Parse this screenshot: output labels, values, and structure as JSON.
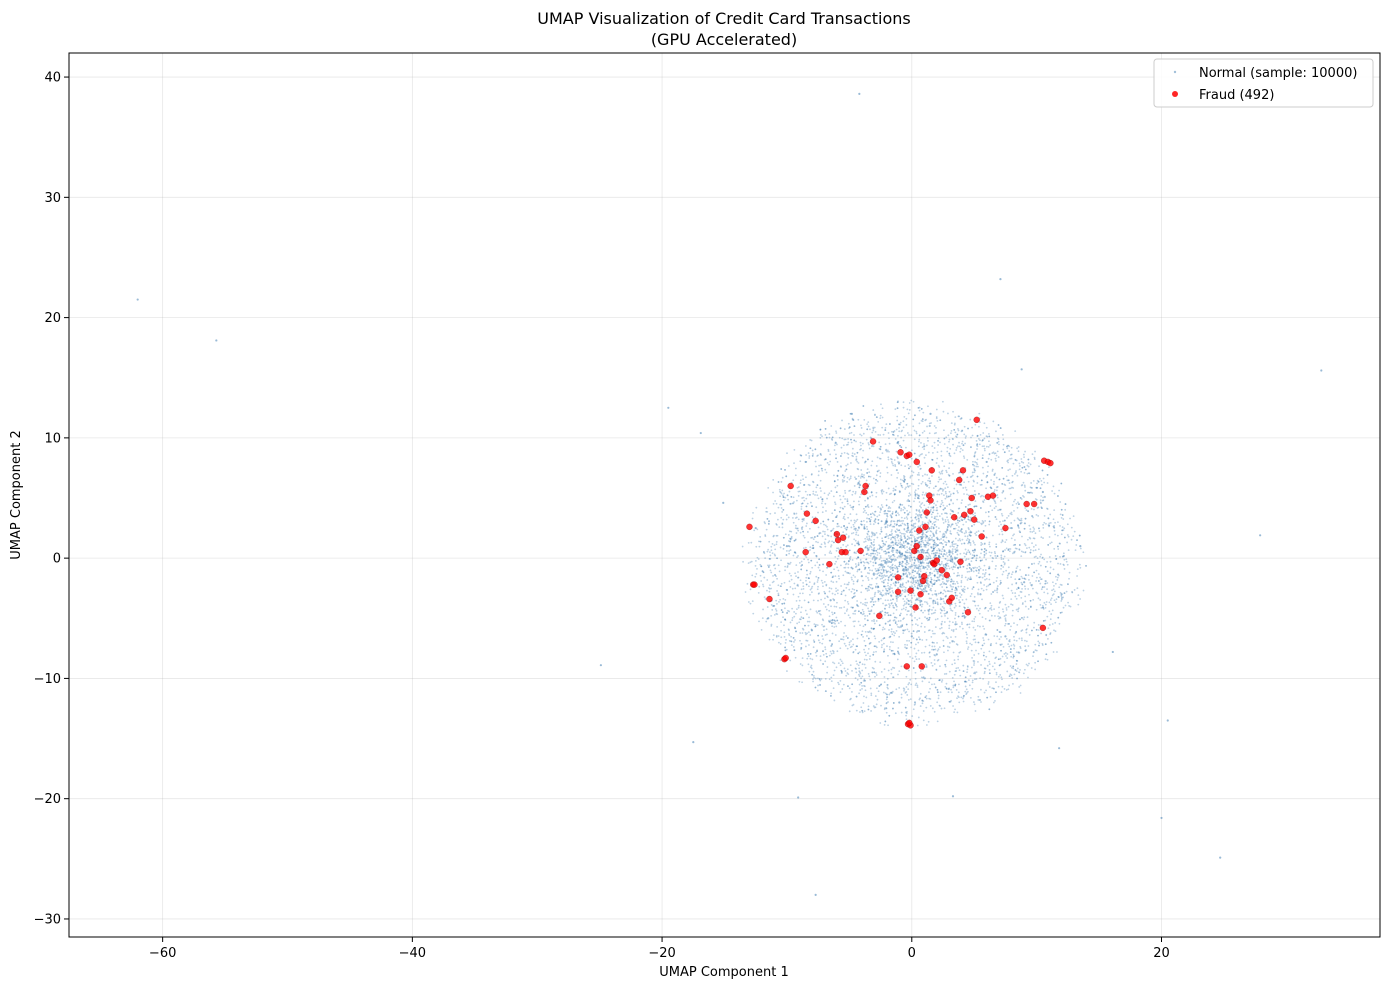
{
  "chart_data": {
    "type": "scatter",
    "title": "UMAP Visualization of Credit Card Transactions",
    "subtitle": "(GPU Accelerated)",
    "xlabel": "UMAP Component 1",
    "ylabel": "UMAP Component 2",
    "xlim": [
      -67.5,
      37.5
    ],
    "ylim": [
      -31.5,
      42.0
    ],
    "xticks": [
      -60,
      -40,
      -20,
      0,
      20
    ],
    "yticks": [
      -30,
      -20,
      -10,
      0,
      10,
      20,
      30,
      40
    ],
    "xtick_labels": [
      "−60",
      "−40",
      "−20",
      "0",
      "20"
    ],
    "ytick_labels": [
      "−30",
      "−20",
      "−10",
      "0",
      "10",
      "20",
      "30",
      "40"
    ],
    "grid": true,
    "legend_position": "top-right",
    "series": [
      {
        "name": "Normal (sample: 10000)",
        "color": "#4682b4",
        "marker": "dot",
        "count_shown": 10000,
        "points": [
          [
            -62,
            21.5
          ],
          [
            -55.7,
            18.1
          ],
          [
            -4.2,
            38.6
          ],
          [
            7.1,
            23.2
          ],
          [
            -19.5,
            12.5
          ],
          [
            -16.9,
            10.4
          ],
          [
            -24.9,
            -8.9
          ],
          [
            -17.5,
            -15.3
          ],
          [
            -9.1,
            -19.9
          ],
          [
            -7.7,
            -28.0
          ],
          [
            3.3,
            -19.8
          ],
          [
            20.0,
            -21.6
          ],
          [
            24.7,
            -24.9
          ],
          [
            20.5,
            -13.5
          ],
          [
            11.8,
            -15.8
          ],
          [
            16.1,
            -7.8
          ],
          [
            27.9,
            1.9
          ],
          [
            32.8,
            15.6
          ],
          [
            8.8,
            15.7
          ],
          [
            -15.1,
            4.6
          ],
          [
            0.2,
            1.0
          ],
          [
            1.0,
            9.3
          ],
          [
            -4.8,
            12.0
          ],
          [
            3.5,
            -5.5
          ],
          [
            -2.5,
            -4.5
          ],
          [
            -6.0,
            2.0
          ],
          [
            5.5,
            -3.0
          ],
          [
            8.0,
            2.5
          ],
          [
            -8.0,
            -6.0
          ],
          [
            9.0,
            -2.0
          ],
          [
            -3.5,
            6.0
          ],
          [
            2.0,
            -8.0
          ],
          [
            -10.0,
            1.0
          ],
          [
            12.0,
            -3.0
          ],
          [
            1.5,
            12.0
          ],
          [
            -1.0,
            -12.0
          ],
          [
            6.0,
            8.0
          ],
          [
            -6.5,
            -3.5
          ],
          [
            10.5,
            5.5
          ],
          [
            -11.5,
            -5.0
          ],
          [
            0.5,
            5.0
          ],
          [
            4.0,
            3.5
          ],
          [
            -2.0,
            3.0
          ],
          [
            3.0,
            0.5
          ],
          [
            -4.0,
            -1.5
          ],
          [
            7.5,
            -6.5
          ],
          [
            -8.5,
            8.0
          ],
          [
            13.5,
            1.0
          ],
          [
            -12.5,
            2.5
          ],
          [
            0.0,
            -6.5
          ]
        ]
      },
      {
        "name": "Fraud (492)",
        "color": "#ff0000",
        "marker": "circle",
        "count_shown": 492,
        "points": [
          [
            -13.0,
            2.6
          ],
          [
            -12.7,
            -2.2
          ],
          [
            -12.6,
            -2.2
          ],
          [
            -11.4,
            -3.4
          ],
          [
            -10.2,
            -8.4
          ],
          [
            -10.1,
            -8.3
          ],
          [
            -9.7,
            6.0
          ],
          [
            -8.5,
            0.5
          ],
          [
            -8.4,
            3.7
          ],
          [
            -7.7,
            3.1
          ],
          [
            -6.6,
            -0.5
          ],
          [
            -6.0,
            2.0
          ],
          [
            -5.9,
            1.5
          ],
          [
            -5.6,
            0.5
          ],
          [
            -5.5,
            1.7
          ],
          [
            -5.3,
            0.5
          ],
          [
            -4.1,
            0.6
          ],
          [
            -3.8,
            5.5
          ],
          [
            -3.7,
            6.0
          ],
          [
            -3.1,
            9.7
          ],
          [
            -2.6,
            -4.8
          ],
          [
            -1.1,
            -1.6
          ],
          [
            -1.1,
            -2.8
          ],
          [
            -0.9,
            8.8
          ],
          [
            -0.4,
            8.5
          ],
          [
            -0.3,
            -13.8
          ],
          [
            -0.1,
            -13.9
          ],
          [
            -0.2,
            -13.7
          ],
          [
            -0.4,
            -9.0
          ],
          [
            -0.2,
            8.6
          ],
          [
            -0.1,
            -2.7
          ],
          [
            0.3,
            -4.1
          ],
          [
            0.2,
            0.6
          ],
          [
            0.4,
            1.0
          ],
          [
            0.4,
            8.0
          ],
          [
            0.6,
            2.3
          ],
          [
            0.7,
            0.1
          ],
          [
            0.7,
            -3.0
          ],
          [
            0.8,
            -9.0
          ],
          [
            0.9,
            -1.9
          ],
          [
            1.0,
            -1.5
          ],
          [
            1.1,
            2.6
          ],
          [
            1.2,
            3.8
          ],
          [
            1.4,
            5.2
          ],
          [
            1.5,
            4.8
          ],
          [
            1.6,
            7.3
          ],
          [
            1.7,
            -0.4
          ],
          [
            1.8,
            -0.5
          ],
          [
            2.0,
            -0.2
          ],
          [
            2.4,
            -1.0
          ],
          [
            2.8,
            -1.4
          ],
          [
            3.0,
            -3.6
          ],
          [
            3.2,
            -3.3
          ],
          [
            3.4,
            3.4
          ],
          [
            3.8,
            6.5
          ],
          [
            3.9,
            -0.3
          ],
          [
            4.1,
            7.3
          ],
          [
            4.2,
            3.6
          ],
          [
            4.5,
            -4.5
          ],
          [
            4.7,
            3.9
          ],
          [
            4.8,
            5.0
          ],
          [
            5.0,
            3.2
          ],
          [
            5.2,
            11.5
          ],
          [
            5.6,
            1.8
          ],
          [
            6.1,
            5.1
          ],
          [
            6.5,
            5.2
          ],
          [
            7.5,
            2.5
          ],
          [
            9.2,
            4.5
          ],
          [
            9.8,
            4.5
          ],
          [
            10.5,
            -5.8
          ],
          [
            10.6,
            8.1
          ],
          [
            10.9,
            8.0
          ],
          [
            11.1,
            7.9
          ]
        ]
      }
    ]
  }
}
